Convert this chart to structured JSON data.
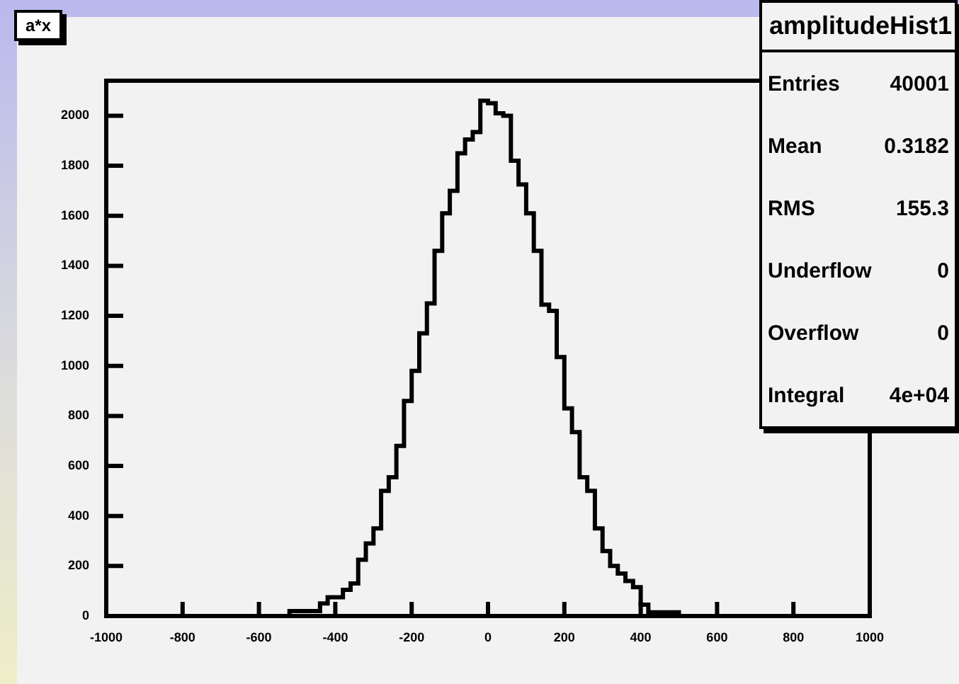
{
  "chart_data": {
    "type": "histogram",
    "title": "a*x",
    "bins": [
      -1000,
      -980,
      -960,
      -940,
      -920,
      -900,
      -880,
      -860,
      -840,
      -820,
      -800,
      -780,
      -760,
      -740,
      -720,
      -700,
      -680,
      -660,
      -640,
      -620,
      -600,
      -580,
      -560,
      -540,
      -520,
      -500,
      -480,
      -460,
      -440,
      -420,
      -400,
      -380,
      -360,
      -340,
      -320,
      -300,
      -280,
      -260,
      -240,
      -220,
      -200,
      -180,
      -160,
      -140,
      -120,
      -100,
      -80,
      -60,
      -40,
      -20,
      0,
      20,
      40,
      60,
      80,
      100,
      120,
      140,
      160,
      180,
      200,
      220,
      240,
      260,
      280,
      300,
      320,
      340,
      360,
      380,
      400,
      420,
      440,
      460,
      480,
      500,
      520,
      540,
      560,
      580,
      600,
      620,
      640,
      660,
      680,
      700,
      720,
      740,
      760,
      780,
      800,
      820,
      840,
      860,
      880,
      900,
      920,
      940,
      960,
      980,
      1000
    ],
    "values": [
      0,
      0,
      0,
      0,
      0,
      0,
      0,
      0,
      0,
      0,
      0,
      0,
      0,
      0,
      0,
      0,
      0,
      0,
      0,
      0,
      0,
      0,
      0,
      0,
      20,
      20,
      20,
      20,
      50,
      75,
      75,
      105,
      130,
      225,
      290,
      350,
      500,
      555,
      680,
      860,
      980,
      1130,
      1250,
      1460,
      1610,
      1700,
      1850,
      1905,
      1935,
      2060,
      2050,
      2010,
      2000,
      1820,
      1725,
      1610,
      1460,
      1245,
      1220,
      1035,
      830,
      735,
      555,
      500,
      350,
      260,
      200,
      170,
      140,
      115,
      45,
      15,
      15,
      15,
      15,
      0,
      0,
      0,
      0,
      0,
      0,
      0,
      0,
      0,
      0,
      0,
      0,
      0,
      0,
      0,
      0,
      0,
      0,
      0,
      0,
      0,
      0,
      0,
      0,
      0
    ],
    "color": "#000000",
    "xlim": [
      -1000,
      1000
    ],
    "xticks": [
      -1000,
      -800,
      -600,
      -400,
      -200,
      0,
      200,
      400,
      600,
      800,
      1000
    ],
    "ylim": [
      0,
      2140
    ],
    "yticks": [
      0,
      200,
      400,
      600,
      800,
      1000,
      1200,
      1400,
      1600,
      1800,
      2000
    ],
    "annotations": [
      "amplitudeHist1",
      "Entries 40001",
      "Mean 0.3182",
      "RMS 155.3",
      "Underflow 0",
      "Overflow 0",
      "Integral 4e+04"
    ]
  }
}
